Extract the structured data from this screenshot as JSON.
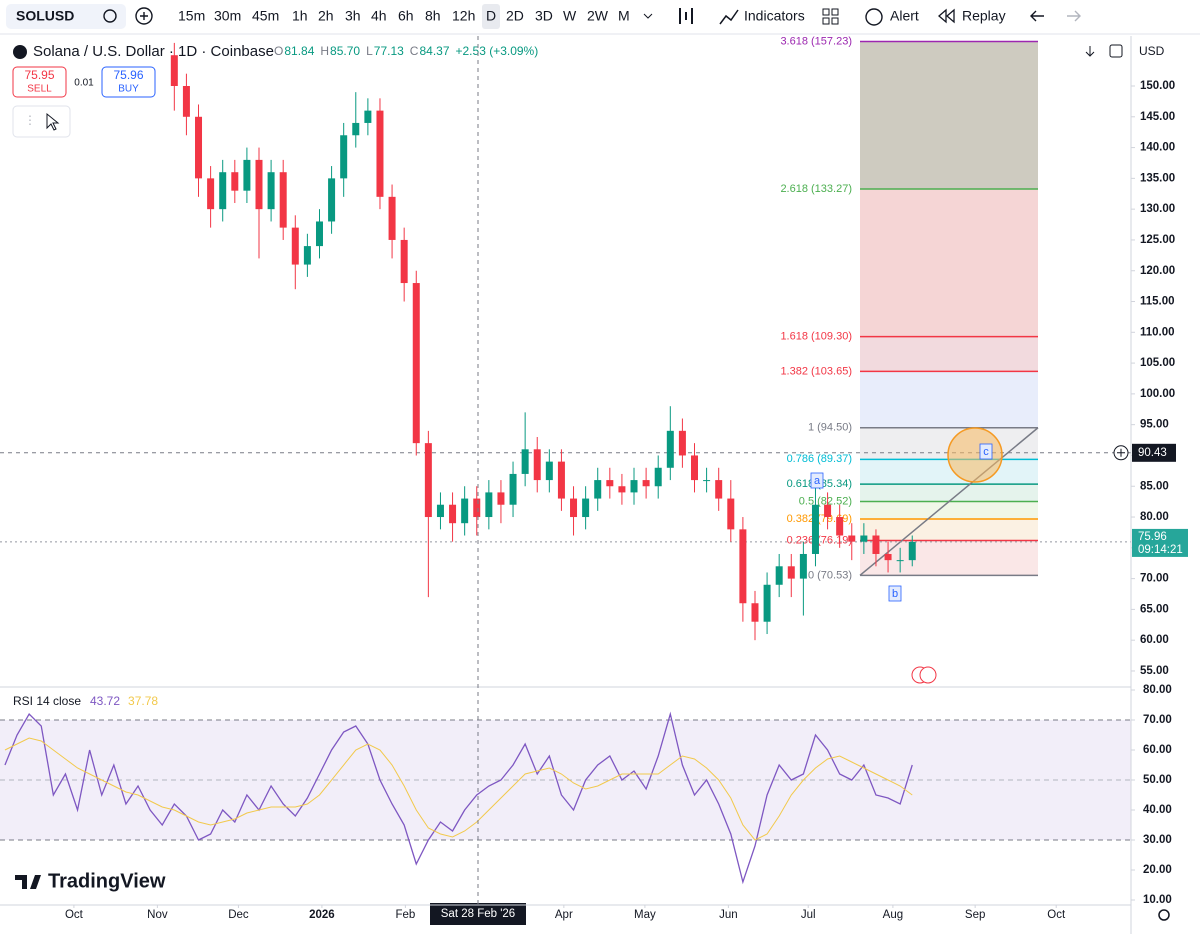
{
  "toolbar": {
    "symbol": "SOLUSD",
    "intervals": [
      "15m",
      "30m",
      "45m",
      "1h",
      "2h",
      "3h",
      "4h",
      "6h",
      "8h",
      "12h",
      "D",
      "2D",
      "3D",
      "W",
      "2W",
      "M"
    ],
    "indicators": "Indicators",
    "alert": "Alert",
    "replay": "Replay"
  },
  "legend": {
    "title": "Solana / U.S. Dollar · 1D · Coinbase",
    "ohlc": [
      {
        "key": "O",
        "value": "81.84"
      },
      {
        "key": "H",
        "value": "85.70"
      },
      {
        "key": "L",
        "value": "77.13"
      },
      {
        "key": "C",
        "value": "84.37"
      }
    ],
    "change": "+2.53 (+3.09%)",
    "sell_price": "75.95",
    "sell": "SELL",
    "spread": "0.01",
    "buy_price": "75.96",
    "buy": "BUY"
  },
  "currency": "USD",
  "logo": "TradingView",
  "chart_data": [
    {
      "type": "candlestick",
      "up_color": "#089981",
      "down_color": "#f23645",
      "xlim": [
        -0.41,
        93
      ],
      "xticks": [
        {
          "value": 5.7,
          "label": "Oct"
        },
        {
          "value": 12.6,
          "label": "Nov"
        },
        {
          "value": 19.3,
          "label": "Dec"
        },
        {
          "value": 26.2,
          "label": "2026"
        },
        {
          "value": 33.1,
          "label": "Feb"
        },
        {
          "value": 46.2,
          "label": "Apr"
        },
        {
          "value": 52.9,
          "label": "May"
        },
        {
          "value": 59.8,
          "label": "Jun"
        },
        {
          "value": 66.4,
          "label": "Jul"
        },
        {
          "value": 73.4,
          "label": "Aug"
        },
        {
          "value": 80.2,
          "label": "Sep"
        },
        {
          "value": 86.9,
          "label": "Oct"
        }
      ],
      "ylim": [
        52.56,
        158.12
      ],
      "yticks": [
        {
          "value": 150,
          "label": "150.00"
        },
        {
          "value": 145,
          "label": "145.00"
        },
        {
          "value": 140,
          "label": "140.00"
        },
        {
          "value": 135,
          "label": "135.00"
        },
        {
          "value": 130,
          "label": "130.00"
        },
        {
          "value": 125,
          "label": "125.00"
        },
        {
          "value": 120,
          "label": "120.00"
        },
        {
          "value": 115,
          "label": "115.00"
        },
        {
          "value": 110,
          "label": "110.00"
        },
        {
          "value": 105,
          "label": "105.00"
        },
        {
          "value": 100,
          "label": "100.00"
        },
        {
          "value": 95,
          "label": "95.00"
        },
        {
          "value": 90,
          "label": "90.00"
        },
        {
          "value": 85,
          "label": "85.00"
        },
        {
          "value": 80,
          "label": "80.00"
        },
        {
          "value": 75,
          "label": "75.00"
        },
        {
          "value": 70,
          "label": "70.00"
        },
        {
          "value": 65,
          "label": "65.00"
        },
        {
          "value": 60,
          "label": "60.00"
        },
        {
          "value": 55,
          "label": "55.00"
        }
      ],
      "open": [
        null,
        null,
        null,
        null,
        null,
        null,
        null,
        null,
        null,
        null,
        null,
        null,
        null,
        null,
        155,
        150,
        145,
        135,
        130,
        136,
        133,
        138,
        130,
        136,
        127,
        121,
        124,
        128,
        135,
        142,
        144,
        146,
        132,
        125,
        118,
        92,
        80,
        82,
        79,
        83,
        80,
        84,
        82,
        87,
        91,
        86,
        89,
        83,
        80,
        83,
        86,
        85,
        84,
        86,
        85,
        88,
        94,
        90,
        86,
        86,
        83,
        78,
        66,
        63,
        69,
        72,
        70,
        74,
        82,
        80,
        77,
        76,
        77,
        74,
        73,
        73
      ],
      "high": [
        null,
        null,
        null,
        null,
        null,
        null,
        null,
        null,
        null,
        null,
        null,
        null,
        null,
        null,
        157,
        152,
        147,
        137,
        138,
        138,
        140,
        140,
        138,
        138,
        129,
        126,
        130,
        137,
        144,
        149,
        148,
        148,
        134,
        127,
        120,
        94,
        84,
        84,
        85,
        85,
        86,
        86,
        89,
        97,
        93,
        91,
        91,
        85,
        85,
        88,
        88,
        87,
        88,
        88,
        90,
        98,
        96,
        92,
        88,
        88,
        86,
        80,
        68,
        71,
        74,
        74,
        76,
        85,
        84,
        82,
        79,
        79,
        78,
        76,
        75,
        77
      ],
      "low": [
        null,
        null,
        null,
        null,
        null,
        null,
        null,
        null,
        null,
        null,
        null,
        null,
        null,
        null,
        146,
        142,
        132,
        127,
        128,
        131,
        131,
        122,
        128,
        125,
        117,
        119,
        122,
        126,
        132,
        140,
        142,
        130,
        122,
        115,
        90,
        67,
        78,
        76,
        77,
        77,
        78,
        79,
        80,
        85,
        84,
        84,
        81,
        77,
        78,
        81,
        83,
        82,
        82,
        83,
        83,
        86,
        88,
        84,
        84,
        81,
        76,
        63,
        60,
        61,
        67,
        67,
        64,
        72,
        78,
        75,
        73,
        74,
        72,
        71,
        71,
        72
      ],
      "close": [
        null,
        null,
        null,
        null,
        null,
        null,
        null,
        null,
        null,
        null,
        null,
        null,
        null,
        null,
        150,
        145,
        135,
        130,
        136,
        133,
        138,
        130,
        136,
        127,
        121,
        124,
        128,
        135,
        142,
        144,
        146,
        132,
        125,
        118,
        92,
        80,
        82,
        79,
        83,
        80,
        84,
        82,
        87,
        91,
        86,
        89,
        83,
        80,
        83,
        86,
        85,
        84,
        86,
        85,
        88,
        94,
        90,
        86,
        86,
        83,
        78,
        66,
        63,
        69,
        72,
        70,
        74,
        82,
        80,
        77,
        76,
        77,
        74,
        73,
        73,
        75.96
      ],
      "fib_levels": [
        {
          "value": 157.23,
          "label": "3.618 (157.23)",
          "color": "#9c27b0",
          "fill": "#c9c5b9"
        },
        {
          "value": 133.27,
          "label": "2.618 (133.27)",
          "color": "#4caf50",
          "fill": "#f4d0d0"
        },
        {
          "value": 109.3,
          "label": "1.618 (109.30)",
          "color": "#f23645",
          "fill": "#f1d6da"
        },
        {
          "value": 103.65,
          "label": "1.382 (103.65)",
          "color": "#f23645",
          "fill": "#e5ebfb"
        },
        {
          "value": 94.5,
          "label": "1 (94.50)",
          "color": "#787b86",
          "fill": "#ececee"
        },
        {
          "value": 89.37,
          "label": "0.786 (89.37)",
          "color": "#00bcd4",
          "fill": "#dff3f7"
        },
        {
          "value": 85.34,
          "label": "0.618 (85.34)",
          "color": "#089981",
          "fill": "#e2f2ea"
        },
        {
          "value": 82.52,
          "label": "0.5 (82.52)",
          "color": "#4caf50",
          "fill": "#eef6e6"
        },
        {
          "value": 79.69,
          "label": "0.382 (79.69)",
          "color": "#ff9800",
          "fill": "#fbefe0"
        },
        {
          "value": 76.19,
          "label": "0.236 (76.19)",
          "color": "#f23645",
          "fill": "#fae4e4"
        },
        {
          "value": 70.53,
          "label": "0 (70.53)",
          "color": "#787b86"
        }
      ],
      "wave_labels": [
        "a",
        "b",
        "c"
      ],
      "last_price": 75.96,
      "countdown": "09:14:21",
      "crosshair": {
        "price": 90.43,
        "date": "Sat 28 Feb '26"
      }
    },
    {
      "type": "line",
      "title": "RSI 14 close",
      "ylim": [
        8.33,
        80.67
      ],
      "yticks": [
        {
          "value": 80,
          "label": "80.00"
        },
        {
          "value": 70,
          "label": "70.00"
        },
        {
          "value": 60,
          "label": "60.00"
        },
        {
          "value": 50,
          "label": "50.00"
        },
        {
          "value": 40,
          "label": "40.00"
        },
        {
          "value": 30,
          "label": "30.00"
        },
        {
          "value": 20,
          "label": "20.00"
        },
        {
          "value": 10,
          "label": "10.00"
        }
      ],
      "band": [
        30,
        70
      ],
      "series": [
        {
          "name": "43.72",
          "color": "#7e57c2",
          "values": [
            55,
            65,
            72,
            68,
            45,
            52,
            40,
            60,
            45,
            55,
            42,
            48,
            40,
            35,
            42,
            38,
            30,
            32,
            40,
            36,
            45,
            40,
            48,
            42,
            38,
            44,
            52,
            60,
            66,
            68,
            62,
            50,
            42,
            35,
            22,
            30,
            36,
            33,
            40,
            45,
            48,
            50,
            55,
            62,
            52,
            58,
            45,
            40,
            50,
            55,
            58,
            50,
            53,
            47,
            58,
            72,
            55,
            45,
            50,
            42,
            32,
            16,
            28,
            45,
            55,
            50,
            52,
            65,
            60,
            52,
            50,
            55,
            45,
            44,
            42,
            55
          ]
        },
        {
          "name": "37.78",
          "color": "#f2c94c",
          "values": [
            60,
            62,
            64,
            63,
            60,
            57,
            54,
            52,
            50,
            48,
            46,
            45,
            43,
            41,
            40,
            38,
            36,
            35,
            36,
            37,
            39,
            40,
            41,
            41,
            41,
            42,
            45,
            50,
            55,
            60,
            62,
            60,
            55,
            48,
            40,
            34,
            32,
            31,
            33,
            36,
            40,
            44,
            48,
            52,
            53,
            54,
            52,
            49,
            47,
            48,
            50,
            52,
            52,
            52,
            52,
            55,
            58,
            57,
            54,
            50,
            44,
            35,
            30,
            32,
            38,
            45,
            50,
            54,
            57,
            58,
            56,
            54,
            52,
            50,
            48,
            45
          ]
        }
      ]
    }
  ]
}
